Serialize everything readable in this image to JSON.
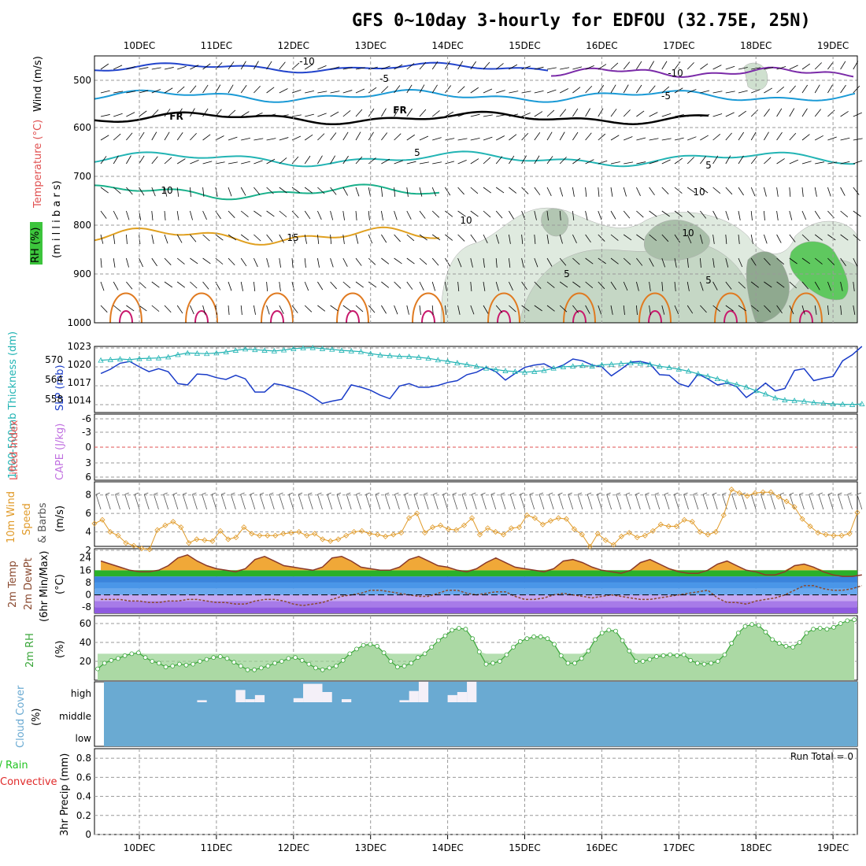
{
  "header": {
    "title": "GFS 0~10day 3-hourly for EDFOU (32.75E, 25N)"
  },
  "dates": [
    "10DEC",
    "11DEC",
    "12DEC",
    "13DEC",
    "14DEC",
    "15DEC",
    "16DEC",
    "17DEC",
    "18DEC",
    "19DEC"
  ],
  "colors": {
    "rh_green": "#3cc43c",
    "temperature_text": "#e05050",
    "wind_text": "#000000",
    "slp_line": "#1a3cc8",
    "thickness_line": "#22b4b4",
    "lifted_index_text": "#e05050",
    "cape_text": "#c070e0",
    "wind10m_line": "#e09a28",
    "dewpoint_line": "#8a4a30",
    "rh2m_line": "#3aa63a",
    "cloud_fill": "#6aaad2",
    "cloud_clear": "#f4f0f8",
    "precip_total": "#22c422",
    "precip_conv": "#e02a2a"
  },
  "panels": {
    "upper": {
      "ylabel_rh": "RH (%)",
      "ylabel_temp": "Temperature (°C)",
      "ylabel_wind": "Wind (m/s)",
      "ylabel_units": "(m i l l i b a r s)",
      "yticks": [
        "500",
        "600",
        "700",
        "800",
        "900",
        "1000"
      ],
      "freeze_label": "FR",
      "contour_labels": [
        "-10",
        "-5",
        "5",
        "10",
        "15",
        "5",
        "-10",
        "-5",
        "5",
        "10",
        "10",
        "10",
        "5"
      ]
    },
    "thickness_slp": {
      "ylabel_left": "1000-500mb Thickness (dm)",
      "ylabel_right": "SLP (mb)",
      "yticks_left": [
        "570",
        "564",
        "558"
      ],
      "yticks_right": [
        "1023",
        "1020",
        "1017",
        "1014"
      ]
    },
    "stability": {
      "ylabel_left": "Lifted Index",
      "ylabel_right": "CAPE (J/kg)",
      "yticks": [
        "-6",
        "-3",
        "0",
        "3",
        "6"
      ]
    },
    "wind10m": {
      "ylabel_a": "10m Wind",
      "ylabel_b": "Speed",
      "ylabel_c": "& Barbs",
      "ylabel_unit": "(m/s)",
      "yticks": [
        "8",
        "6",
        "4",
        "2"
      ]
    },
    "temp2m": {
      "ylabel_a": "2m Temp",
      "ylabel_b": "2m DewPt",
      "ylabel_c": "(6hr Min/Max)",
      "ylabel_unit": "(°C)",
      "yticks": [
        "24",
        "16",
        "8",
        "0",
        "-8"
      ]
    },
    "rh2m": {
      "ylabel": "2m RH",
      "ylabel_unit": "(%)",
      "yticks": [
        "60",
        "40",
        "20"
      ]
    },
    "cloud": {
      "ylabel": "Cloud Cover",
      "ylabel_unit": "(%)",
      "levels": [
        "high",
        "middle",
        "low"
      ]
    },
    "precip": {
      "ylabel_a": "Total / Rain",
      "ylabel_b": "Convective",
      "ylabel_c": "3hr Precip (mm)",
      "yticks": [
        "0.8",
        "0.6",
        "0.4",
        "0.2",
        "0"
      ],
      "run_total": "Run Total = 0"
    }
  },
  "chart_data": [
    {
      "type": "line",
      "name": "SLP (mb)",
      "x_start": "09DEC 12Z",
      "x_step_hours": 3,
      "ylim": [
        1012,
        1023
      ],
      "values": [
        1018.5,
        1019.2,
        1020.2,
        1020.5,
        1019.6,
        1018.8,
        1019.3,
        1018.8,
        1016.8,
        1016.6,
        1018.4,
        1018.3,
        1017.8,
        1017.5,
        1018.2,
        1017.6,
        1015.4,
        1015.4,
        1016.8,
        1016.5,
        1016.0,
        1015.5,
        1014.6,
        1013.5,
        1013.9,
        1014.2,
        1016.6,
        1016.2,
        1015.7,
        1014.9,
        1014.3,
        1016.4,
        1016.8,
        1016.2,
        1016.2,
        1016.5,
        1017.0,
        1017.3,
        1018.3,
        1018.7,
        1019.5,
        1018.8,
        1017.4,
        1018.5,
        1019.5,
        1019.9,
        1020.1,
        1019.3,
        1019.9,
        1020.9,
        1020.6,
        1019.9,
        1019.6,
        1018.1,
        1019.2,
        1020.4,
        1020.5,
        1020.1,
        1018.3,
        1018.2,
        1016.8,
        1016.3,
        1018.4,
        1017.6,
        1016.6,
        1016.9,
        1016.3,
        1014.5,
        1015.6,
        1016.9,
        1015.6,
        1016.0,
        1019.0,
        1019.3,
        1017.3,
        1017.7,
        1018.0,
        1020.6,
        1021.6,
        1023.0
      ]
    },
    {
      "type": "line",
      "name": "1000-500mb Thickness (dm)",
      "x_start": "09DEC 12Z",
      "x_step_hours": 3,
      "ylim": [
        554,
        574
      ],
      "values": [
        569.8,
        570.0,
        570.2,
        570.0,
        570.3,
        570.4,
        570.5,
        570.8,
        571.5,
        572.0,
        571.9,
        571.8,
        572.0,
        572.3,
        572.8,
        573.2,
        573.0,
        572.8,
        572.6,
        572.9,
        573.3,
        573.5,
        573.6,
        573.3,
        573.1,
        572.8,
        572.6,
        572.4,
        571.8,
        571.4,
        571.2,
        571.0,
        570.9,
        570.7,
        570.4,
        569.9,
        569.5,
        569.0,
        568.5,
        568.0,
        567.4,
        567.0,
        566.6,
        566.4,
        566.2,
        566.4,
        566.7,
        567.4,
        567.8,
        568.0,
        568.2,
        568.0,
        568.4,
        568.6,
        568.8,
        569.0,
        568.9,
        568.6,
        568.0,
        567.6,
        567.1,
        566.5,
        565.7,
        565.0,
        564.2,
        563.3,
        562.5,
        561.7,
        560.6,
        559.6,
        558.4,
        557.8,
        557.6,
        557.4,
        557.0,
        556.8,
        556.6,
        556.5,
        556.4,
        556.6
      ]
    },
    {
      "type": "line",
      "name": "10m Wind Speed (m/s)",
      "x_start": "09DEC 12Z",
      "x_step_hours": 3,
      "ylim": [
        2,
        9
      ],
      "values": [
        4.9,
        5.3,
        4.0,
        3.6,
        2.8,
        2.5,
        2.2,
        2.1,
        4.2,
        4.7,
        5.1,
        4.5,
        2.8,
        3.2,
        3.1,
        3.0,
        4.1,
        3.2,
        3.4,
        4.5,
        3.8,
        3.6,
        3.6,
        3.6,
        3.8,
        3.9,
        4.0,
        3.6,
        3.8,
        3.2,
        3.0,
        3.2,
        3.6,
        4.0,
        4.1,
        3.8,
        3.7,
        3.5,
        3.7,
        3.9,
        5.5,
        6.0,
        3.9,
        4.5,
        4.7,
        4.3,
        4.2,
        4.7,
        5.5,
        3.7,
        4.4,
        4.0,
        3.7,
        4.4,
        4.5,
        5.8,
        5.5,
        4.8,
        5.2,
        5.5,
        5.4,
        4.3,
        3.7,
        2.4,
        3.8,
        3.1,
        2.6,
        3.5,
        3.9,
        3.4,
        3.6,
        4.1,
        4.8,
        4.6,
        4.6,
        5.3,
        5.1,
        4.0,
        3.7,
        4.0,
        5.8,
        8.6,
        8.2,
        7.9,
        8.2,
        8.3,
        8.3,
        7.8,
        7.3,
        6.7,
        5.4,
        4.6,
        3.9,
        3.7,
        3.6,
        3.6,
        3.8,
        6.1
      ]
    },
    {
      "type": "line",
      "name": "2m Temp (°C)",
      "x_start": "09DEC 12Z",
      "x_step_hours": 3,
      "ylim": [
        -12,
        30
      ],
      "values": [
        22,
        20,
        18,
        16,
        15,
        15,
        16,
        19,
        24,
        26,
        22,
        19,
        17,
        16,
        15,
        17,
        23,
        25,
        22,
        19,
        18,
        17,
        16,
        18,
        24,
        25,
        22,
        18,
        17,
        16,
        16,
        18,
        23,
        25,
        22,
        19,
        18,
        16,
        15,
        17,
        21,
        24,
        21,
        18,
        17,
        16,
        15,
        17,
        22,
        23,
        21,
        18,
        16,
        15,
        14,
        16,
        21,
        23,
        20,
        17,
        15,
        14,
        14,
        16,
        20,
        22,
        19,
        16,
        15,
        13,
        13,
        15,
        19,
        20,
        18,
        15,
        13,
        12,
        12,
        13
      ]
    },
    {
      "type": "line",
      "name": "2m DewPt (°C)",
      "x_start": "09DEC 12Z",
      "x_step_hours": 3,
      "ylim": [
        -12,
        30
      ],
      "values": [
        -3,
        -3,
        -3,
        -4,
        -4,
        -5,
        -5,
        -4,
        -4,
        -3,
        -3,
        -4,
        -5,
        -5,
        -6,
        -6,
        -4,
        -3,
        -3,
        -4,
        -6,
        -7,
        -6,
        -5,
        -3,
        -1,
        0,
        1,
        3,
        3,
        2,
        1,
        0,
        -1,
        -1,
        1,
        3,
        3,
        1,
        0,
        1,
        2,
        2,
        -1,
        -3,
        -3,
        -2,
        0,
        1,
        0,
        -1,
        -2,
        -1,
        0,
        -1,
        -2,
        -3,
        -3,
        -2,
        -1,
        0,
        1,
        2,
        3,
        -2,
        -5,
        -5,
        -6,
        -4,
        -3,
        -2,
        0,
        3,
        6,
        6,
        4,
        3,
        3,
        4,
        6
      ]
    },
    {
      "type": "area",
      "name": "2m RH (%)",
      "x_start": "09DEC 12Z",
      "x_step_hours": 3,
      "ylim": [
        0,
        65
      ],
      "values": [
        12,
        18,
        21,
        23,
        26,
        28,
        29,
        24,
        20,
        18,
        14,
        15,
        17,
        16,
        17,
        20,
        22,
        24,
        25,
        23,
        19,
        15,
        11,
        11,
        13,
        15,
        18,
        20,
        23,
        24,
        21,
        17,
        13,
        11,
        13,
        15,
        21,
        28,
        33,
        37,
        38,
        36,
        29,
        20,
        14,
        15,
        18,
        24,
        28,
        35,
        42,
        47,
        53,
        55,
        54,
        44,
        30,
        17,
        18,
        20,
        27,
        35,
        41,
        44,
        46,
        46,
        44,
        38,
        26,
        18,
        18,
        23,
        31,
        43,
        50,
        53,
        52,
        42,
        31,
        20,
        20,
        22,
        25,
        26,
        27,
        26,
        27,
        21,
        18,
        17,
        18,
        20,
        27,
        39,
        50,
        57,
        59,
        58,
        51,
        43,
        39,
        36,
        35,
        40,
        50,
        54,
        55,
        54,
        56,
        60,
        63,
        64
      ]
    },
    {
      "type": "bar",
      "name": "Cloud Cover (%)",
      "note": "high-level cloud segments shown as clear (white) gaps within full-width blue cover",
      "x_start": "09DEC 12Z",
      "x_step_hours": 3,
      "high_clear_blocks": [
        {
          "start_index": 10,
          "length": 1,
          "fraction": 0.1
        },
        {
          "start_index": 14,
          "length": 1,
          "fraction": 0.6
        },
        {
          "start_index": 15,
          "length": 1,
          "fraction": 0.15
        },
        {
          "start_index": 16,
          "length": 1,
          "fraction": 0.35
        },
        {
          "start_index": 20,
          "length": 1,
          "fraction": 0.2
        },
        {
          "start_index": 21,
          "length": 2,
          "fraction": 0.9
        },
        {
          "start_index": 23,
          "length": 1,
          "fraction": 0.5
        },
        {
          "start_index": 25,
          "length": 1,
          "fraction": 0.15
        },
        {
          "start_index": 31,
          "length": 1,
          "fraction": 0.1
        },
        {
          "start_index": 32,
          "length": 1,
          "fraction": 0.55
        },
        {
          "start_index": 33,
          "length": 1,
          "fraction": 1.0
        },
        {
          "start_index": 36,
          "length": 1,
          "fraction": 0.35
        },
        {
          "start_index": 37,
          "length": 1,
          "fraction": 0.5
        },
        {
          "start_index": 38,
          "length": 1,
          "fraction": 1.0
        },
        {
          "start_index": 81,
          "length": 1,
          "fraction": 0.1
        },
        {
          "start_index": 82,
          "length": 1,
          "fraction": 1.0
        },
        {
          "start_index": 83,
          "length": 1,
          "fraction": 0.6
        }
      ]
    },
    {
      "type": "bar",
      "name": "3hr Precip (mm)",
      "x_start": "09DEC 12Z",
      "x_step_hours": 3,
      "ylim": [
        0,
        0.9
      ],
      "values": []
    }
  ]
}
